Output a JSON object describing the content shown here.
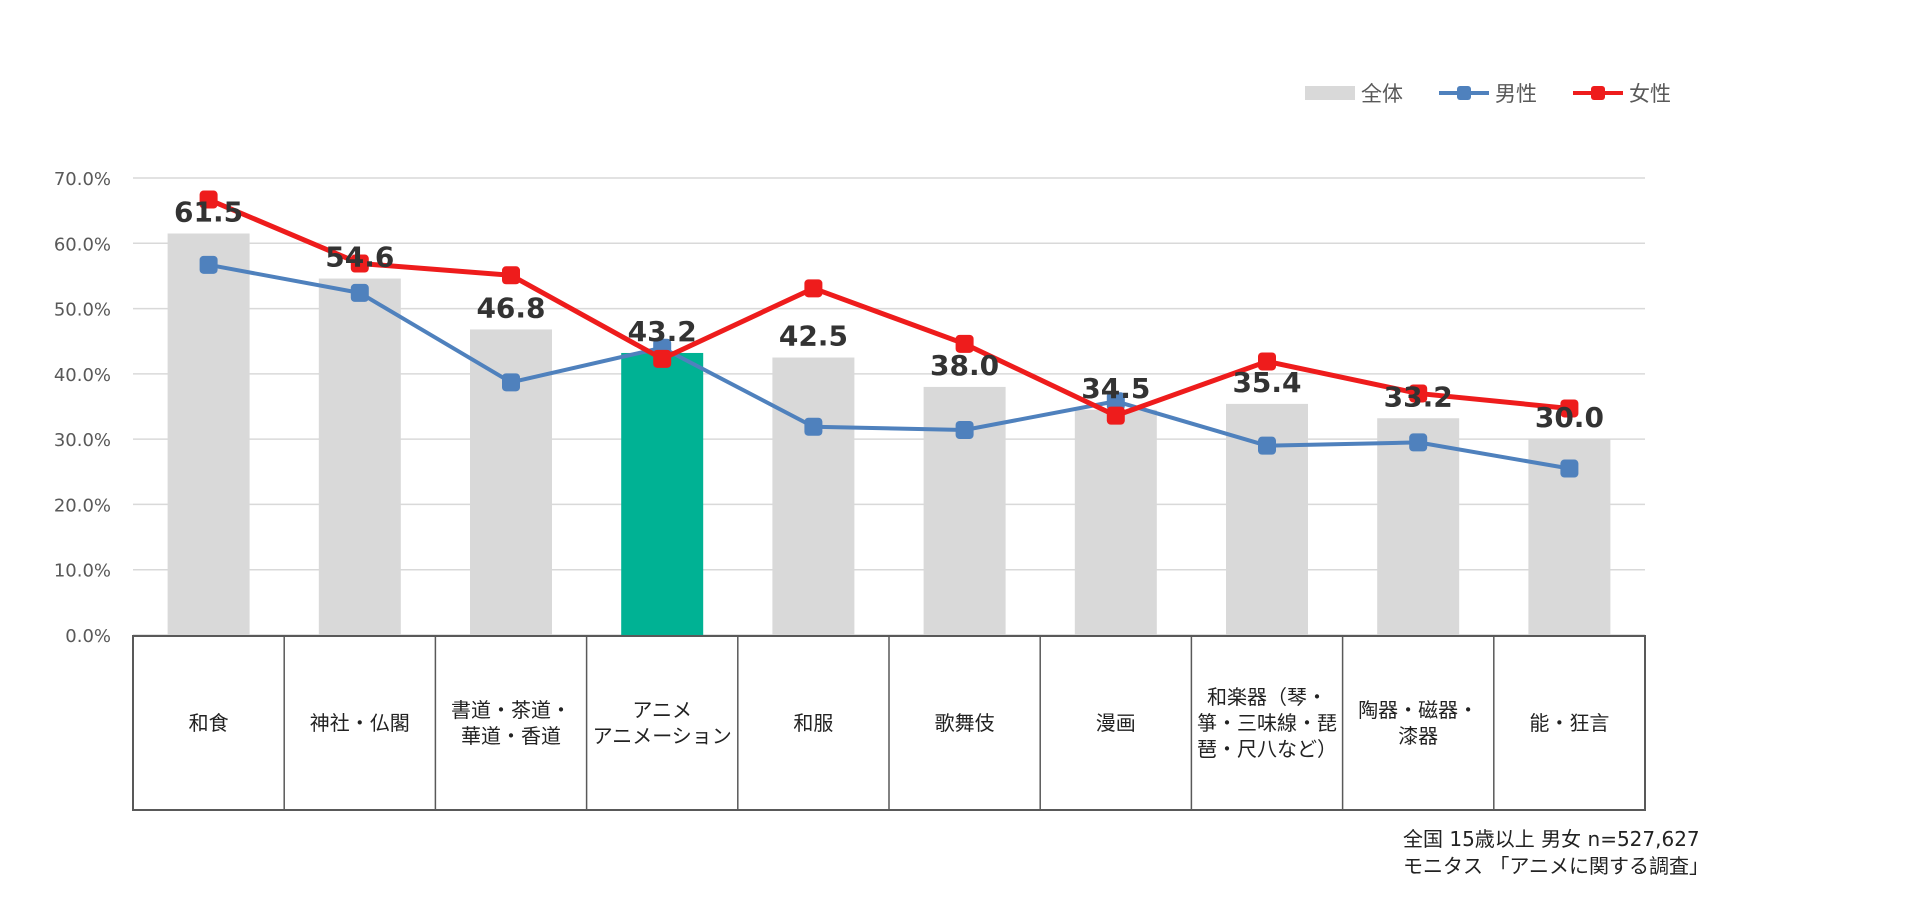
{
  "legend": {
    "bar_label": "全体",
    "male_label": "男性",
    "female_label": "女性"
  },
  "footnote": {
    "line1": "全国 15歳以上 男女 n=527,627",
    "line2": "モニタス 「アニメに関する調査」"
  },
  "colors": {
    "bar": "#d9d9d9",
    "bar_highlight": "#00b294",
    "male": "#4f81bd",
    "female": "#ee1c1c",
    "grid": "#d9d9d9",
    "axis_text": "#595959"
  },
  "chart_data": {
    "type": "bar",
    "categories": [
      [
        "和食"
      ],
      [
        "神社・仏閣"
      ],
      [
        "書道・茶道・",
        "華道・香道"
      ],
      [
        "アニメ",
        "アニメーション"
      ],
      [
        "和服"
      ],
      [
        "歌舞伎"
      ],
      [
        "漫画"
      ],
      [
        "和楽器（琴・",
        "箏・三味線・琵",
        "琶・尺八など）"
      ],
      [
        "陶器・磁器・",
        "漆器"
      ],
      [
        "能・狂言"
      ]
    ],
    "highlight_index": 3,
    "series": [
      {
        "name": "全体",
        "kind": "bar",
        "values": [
          61.5,
          54.6,
          46.8,
          43.2,
          42.5,
          38.0,
          34.5,
          35.4,
          33.2,
          30.0
        ],
        "data_labels": [
          "61.5",
          "54.6",
          "46.8",
          "43.2",
          "42.5",
          "38.0",
          "34.5",
          "35.4",
          "33.2",
          "30.0"
        ]
      },
      {
        "name": "男性",
        "kind": "line",
        "values": [
          56.7,
          52.4,
          38.7,
          44.0,
          31.9,
          31.4,
          35.8,
          29.0,
          29.5,
          25.5
        ]
      },
      {
        "name": "女性",
        "kind": "line",
        "values": [
          66.7,
          56.9,
          55.1,
          42.3,
          53.1,
          44.6,
          33.6,
          41.9,
          37.0,
          34.7
        ]
      }
    ],
    "ylim": [
      0,
      70
    ],
    "yticks": [
      "0.0%",
      "10.0%",
      "20.0%",
      "30.0%",
      "40.0%",
      "50.0%",
      "60.0%",
      "70.0%"
    ],
    "xlabel": "",
    "ylabel": "",
    "grid": true,
    "legend_position": "top-right"
  }
}
